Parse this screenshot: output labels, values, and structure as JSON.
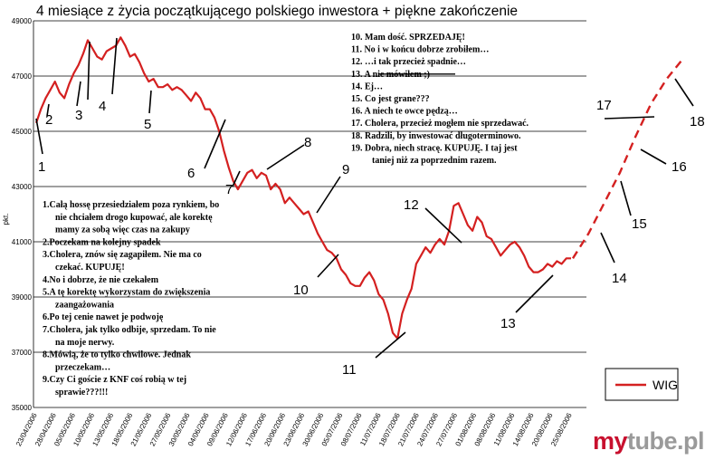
{
  "chart_data": {
    "type": "line",
    "title": "4 miesiące z życia początkującego polskiego inwestora + piękne zakończenie",
    "ylabel": "pkt.",
    "ylim": [
      35000,
      49000
    ],
    "yticks": [
      "35000",
      "37000",
      "39000",
      "41000",
      "43000",
      "45000",
      "47000",
      "49000"
    ],
    "x_tick_labels": [
      "23/04/2006",
      "28/04/2006",
      "05/05/2006",
      "10/05/2006",
      "13/05/2006",
      "18/05/2006",
      "21/05/2006",
      "27/05/2006",
      "30/05/2006",
      "04/06/2006",
      "09/06/2006",
      "12/06/2006",
      "17/06/2006",
      "20/06/2006",
      "23/06/2006",
      "30/06/2006",
      "05/07/2006",
      "08/07/2006",
      "11/07/2006",
      "18/07/2006",
      "21/07/2006",
      "24/07/2006",
      "27/07/2006",
      "01/08/2006",
      "08/08/2006",
      "11/08/2006",
      "14/08/2006",
      "20/08/2006",
      "25/08/2006"
    ],
    "series": [
      {
        "name": "WIG",
        "color": "#d42020",
        "values": [
          45300,
          45800,
          46200,
          46500,
          46800,
          46400,
          46200,
          46700,
          47100,
          47400,
          47800,
          48300,
          48000,
          47700,
          47600,
          47900,
          48000,
          48100,
          48400,
          48100,
          47700,
          47800,
          47500,
          47100,
          46800,
          46900,
          46600,
          46600,
          46700,
          46500,
          46600,
          46500,
          46300,
          46100,
          46400,
          46200,
          45800,
          45800,
          45500,
          45000,
          44300,
          43700,
          43200,
          42900,
          43200,
          43500,
          43600,
          43300,
          43500,
          43400,
          42900,
          43100,
          42900,
          42400,
          42600,
          42400,
          42200,
          42000,
          42100,
          41700,
          41300,
          41000,
          40700,
          40600,
          40400,
          40000,
          39800,
          39500,
          39400,
          39400,
          39700,
          39900,
          39600,
          39100,
          38900,
          38400,
          37700,
          37500,
          38400,
          38900,
          39300,
          40200,
          40500,
          40800,
          40600,
          40900,
          41100,
          40900,
          41400,
          42300,
          42400,
          42000,
          41600,
          41400,
          41900,
          41700,
          41200,
          41100,
          40800,
          40500,
          40700,
          40900,
          41000,
          40800,
          40500,
          40100,
          39900,
          39900,
          40000,
          40200,
          40100,
          40300,
          40200,
          40400,
          40400
        ],
        "projection": {
          "style": "dashed",
          "values": [
            40400,
            41300,
            42400,
            43500,
            44800,
            46000,
            46900,
            47600
          ]
        }
      }
    ],
    "legend": {
      "position": "bottom-right",
      "entries": [
        "WIG"
      ]
    },
    "grid": "horizontal",
    "chart_labels": [
      "1",
      "2",
      "3",
      "4",
      "5",
      "6",
      "7",
      "8",
      "9",
      "10",
      "11",
      "12",
      "13",
      "14",
      "15",
      "16",
      "17",
      "18"
    ],
    "notes_left": [
      "1.Całą hossę przesiedziałem poza rynkiem, bo",
      "nie chciałem drogo kupować, ale korektę",
      "mamy za sobą więc czas na zakupy",
      "2.Poczekam na kolejny spadek",
      "3.Cholera, znów się zagapiłem. Nie ma co",
      "czekać. KUPUJĘ!",
      "4.No i dobrze, że nie czekałem",
      "5.A tę korektę wykorzystam do zwiększenia",
      "zaangażowania",
      "6.Po tej cenie nawet je podwoję",
      "7.Cholera, jak tylko odbije, sprzedam. To nie",
      "na moje nerwy.",
      "8.Mówią, że to tylko chwilowe. Jednak",
      "przeczekam…",
      "9.Czy Ci goście z KNF coś robią w tej",
      "sprawie???!!!"
    ],
    "notes_right": [
      "10.  Mam dość. SPRZEDAJĘ!",
      "11.  No i w końcu dobrze zrobiłem…",
      "12.  …i tak przecież spadnie…",
      "13.  A nie mówiłem ;)",
      "14.  Ej…",
      "15.  Co jest grane???",
      "16.  A niech te owce pędzą…",
      "17.  Cholera, przecież mogłem nie sprzedawać.",
      "18.  Radzili, by inwestować długoterminowo.",
      "19.  Dobra, niech stracę. KUPUJĘ. I taj jest",
      "taniej niż za poprzednim razem."
    ]
  },
  "branding": {
    "logo_part1": "my",
    "logo_part2": "tube.pl",
    "color1": "#c8102e",
    "color2": "#9a9a9a"
  }
}
